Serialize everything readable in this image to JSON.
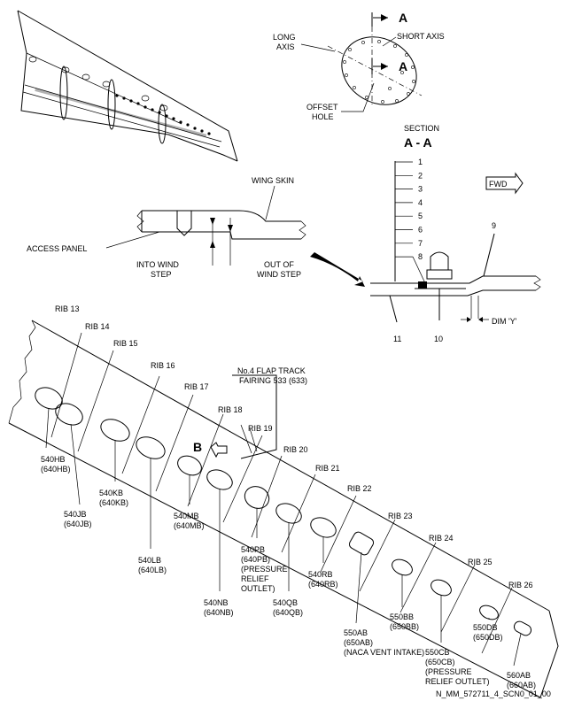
{
  "section_view": {
    "cut_letter": "A",
    "long_axis": "LONG\nAXIS",
    "short_axis": "SHORT AXIS",
    "offset_hole": "OFFSET\nHOLE",
    "section_title": "SECTION",
    "section_name": "A - A",
    "fwd": "FWD",
    "wing_skin": "WING SKIN",
    "access_panel": "ACCESS PANEL",
    "into_wind_step": "INTO WIND\nSTEP",
    "out_of_wind_step": "OUT OF\nWIND STEP",
    "stack_numbers": [
      "1",
      "2",
      "3",
      "4",
      "5",
      "6",
      "7",
      "8"
    ],
    "item_9": "9",
    "item_10": "10",
    "item_11": "11",
    "dim_y": "DIM 'Y'"
  },
  "wing_view": {
    "ribs": [
      "RIB 13",
      "RIB 14",
      "RIB 15",
      "RIB 16",
      "RIB 17",
      "RIB 18",
      "RIB 19",
      "RIB 20",
      "RIB 21",
      "RIB 22",
      "RIB 23",
      "RIB 24",
      "RIB 25",
      "RIB 26"
    ],
    "flap_track": "No.4 FLAP TRACK\nFAIRING 533 (633)",
    "view_b": "B",
    "panels": [
      {
        "id": "540HB",
        "alt": "(640HB)"
      },
      {
        "id": "540JB",
        "alt": "(640JB)"
      },
      {
        "id": "540KB",
        "alt": "(640KB)"
      },
      {
        "id": "540LB",
        "alt": "(640LB)"
      },
      {
        "id": "540MB",
        "alt": "(640MB)"
      },
      {
        "id": "540NB",
        "alt": "(640NB)"
      },
      {
        "id": "540PB",
        "alt": "(640PB)\n(PRESSURE\nRELIEF\nOUTLET)"
      },
      {
        "id": "540QB",
        "alt": "(640QB)"
      },
      {
        "id": "540RB",
        "alt": "(640RB)"
      },
      {
        "id": "550AB",
        "alt": "(650AB)\n(NACA VENT INTAKE)"
      },
      {
        "id": "550BB",
        "alt": "(650BB)"
      },
      {
        "id": "550CB",
        "alt": "(650CB)\n(PRESSURE\nRELIEF OUTLET)"
      },
      {
        "id": "550DB",
        "alt": "(650DB)"
      },
      {
        "id": "560AB",
        "alt": "(660AB)"
      }
    ]
  },
  "figure_id": "N_MM_572711_4_SCN0_01_00"
}
